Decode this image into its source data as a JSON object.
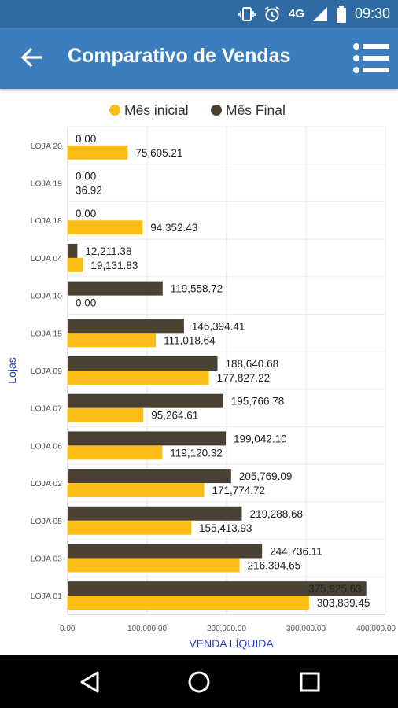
{
  "status_bar": {
    "time": "09:30",
    "network": "4G",
    "icons": [
      "vibrate-icon",
      "alarm-icon",
      "signal-icon",
      "battery-icon"
    ]
  },
  "app_bar": {
    "title": "Comparativo de Vendas",
    "icons": [
      "back-arrow-icon",
      "list-menu-icon"
    ]
  },
  "colors": {
    "primary": "#3b7dbd",
    "status": "#2e6aa3",
    "series_initial": "#fcbd17",
    "series_final": "#4a4133"
  },
  "chart_data": {
    "type": "bar",
    "orientation": "horizontal",
    "categories": [
      "LOJA 20",
      "LOJA 19",
      "LOJA 18",
      "LOJA 04",
      "LOJA 10",
      "LOJA 15",
      "LOJA 09",
      "LOJA 07",
      "LOJA 06",
      "LOJA 02",
      "LOJA 05",
      "LOJA 03",
      "LOJA 01"
    ],
    "series": [
      {
        "name": "Mês inicial",
        "color": "#fcbd17",
        "values": [
          75605.21,
          36.92,
          94352.43,
          19131.83,
          0,
          111018.64,
          177827.22,
          95264.61,
          119120.32,
          171774.72,
          155413.93,
          216394.65,
          303839.45
        ],
        "labels": [
          "75,605.21",
          "36.92",
          "94,352.43",
          "19,131.83",
          "0.00",
          "111,018.64",
          "177,827.22",
          "95,264.61",
          "119,120.32",
          "171,774.72",
          "155,413.93",
          "216,394.65",
          "303,839.45"
        ]
      },
      {
        "name": "Mês Final",
        "color": "#4a4133",
        "values": [
          0,
          0,
          0,
          12211.38,
          119558.72,
          146394.41,
          188640.68,
          195766.78,
          199042.1,
          205769.09,
          219288.68,
          244736.11,
          375925.63
        ],
        "labels": [
          "0.00",
          "0.00",
          "0.00",
          "12,211.38",
          "119,558.72",
          "146,394.41",
          "188,640.68",
          "195,766.78",
          "199,042.10",
          "205,769.09",
          "219,288.68",
          "244,736.11",
          "375,925.63"
        ]
      }
    ],
    "xlabel": "VENDA LÍQUIDA",
    "ylabel": "Lojas",
    "xlim": [
      0,
      400000
    ],
    "x_ticks": [
      0,
      100000,
      200000,
      300000,
      400000
    ],
    "x_tick_labels": [
      "0.00",
      "100,000.00",
      "200,000.00",
      "300,000.00",
      "400,000.00"
    ],
    "legend": "top-center",
    "grid": true
  }
}
